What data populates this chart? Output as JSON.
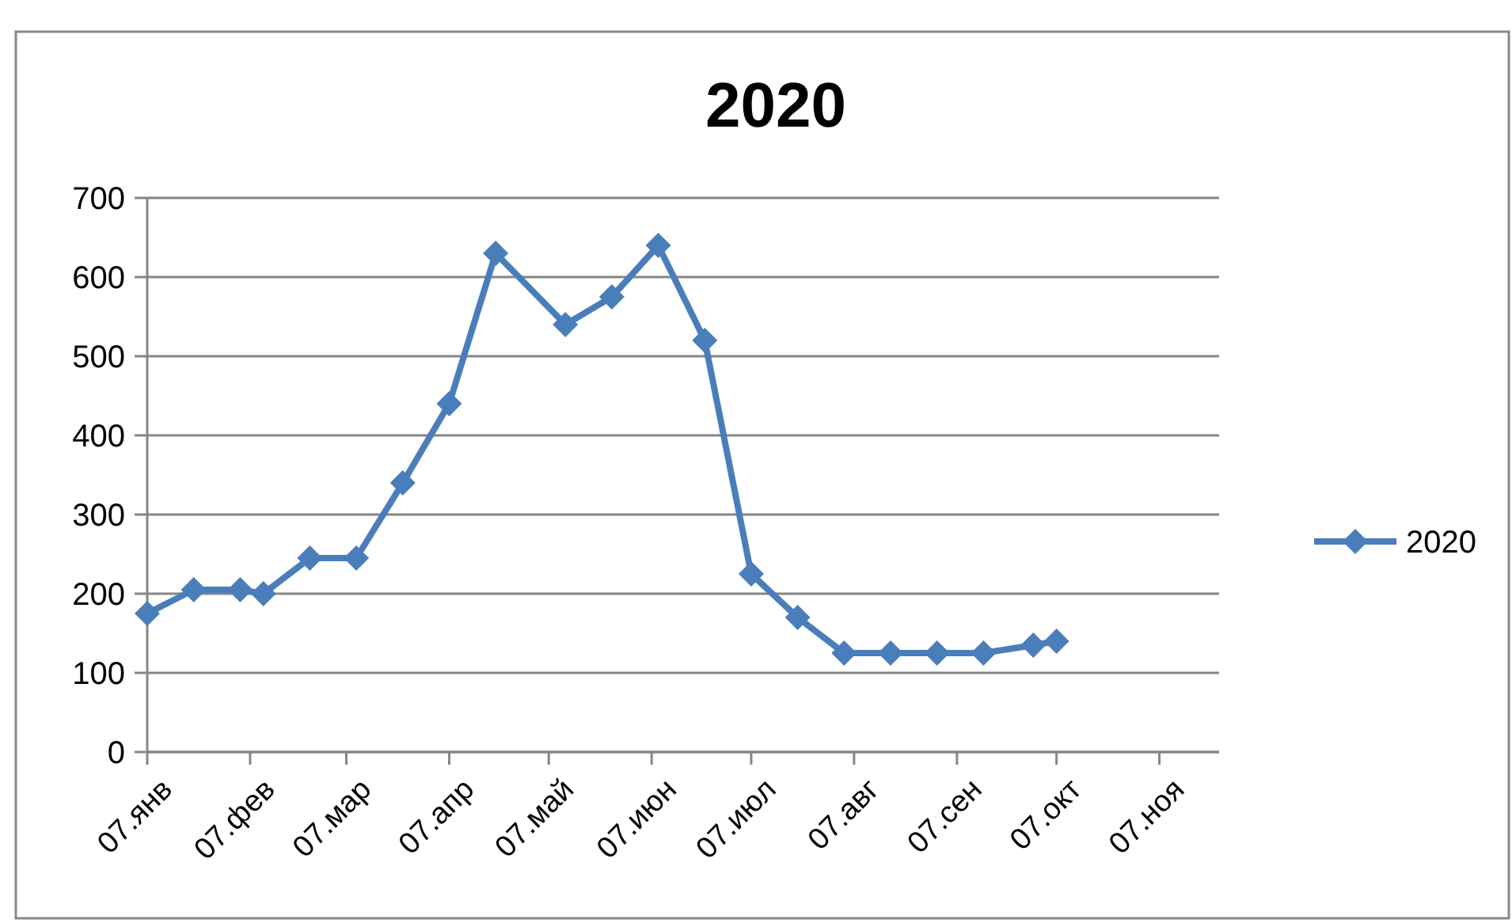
{
  "chart_data": {
    "type": "line",
    "title": "2020",
    "x": [
      "2020-01-07",
      "2020-01-21",
      "2020-02-04",
      "2020-02-11",
      "2020-02-25",
      "2020-03-10",
      "2020-03-24",
      "2020-04-07",
      "2020-04-21",
      "2020-05-12",
      "2020-05-26",
      "2020-06-09",
      "2020-06-23",
      "2020-07-07",
      "2020-07-21",
      "2020-08-04",
      "2020-08-18",
      "2020-09-01",
      "2020-09-15",
      "2020-09-30",
      "2020-10-07"
    ],
    "series": [
      {
        "name": "2020",
        "color": "#4a7ebb",
        "values": [
          175,
          205,
          205,
          200,
          245,
          245,
          340,
          440,
          630,
          540,
          575,
          640,
          520,
          225,
          170,
          125,
          125,
          125,
          125,
          135,
          140
        ]
      }
    ],
    "xlim": [
      "2020-01-07",
      "2020-11-25"
    ],
    "xticks": [
      {
        "value": "2020-01-07",
        "label": "07.янв"
      },
      {
        "value": "2020-02-07",
        "label": "07.фев"
      },
      {
        "value": "2020-03-07",
        "label": "07.мар"
      },
      {
        "value": "2020-04-07",
        "label": "07.апр"
      },
      {
        "value": "2020-05-07",
        "label": "07.май"
      },
      {
        "value": "2020-06-07",
        "label": "07.июн"
      },
      {
        "value": "2020-07-07",
        "label": "07.июл"
      },
      {
        "value": "2020-08-07",
        "label": "07.авг"
      },
      {
        "value": "2020-09-07",
        "label": "07.сен"
      },
      {
        "value": "2020-10-07",
        "label": "07.окт"
      },
      {
        "value": "2020-11-07",
        "label": "07.ноя"
      }
    ],
    "ylim": [
      0,
      700
    ],
    "yticks": [
      0,
      100,
      200,
      300,
      400,
      500,
      600,
      700
    ],
    "grid": "y",
    "legend": "right",
    "marker": "diamond",
    "line_style": "solid"
  }
}
